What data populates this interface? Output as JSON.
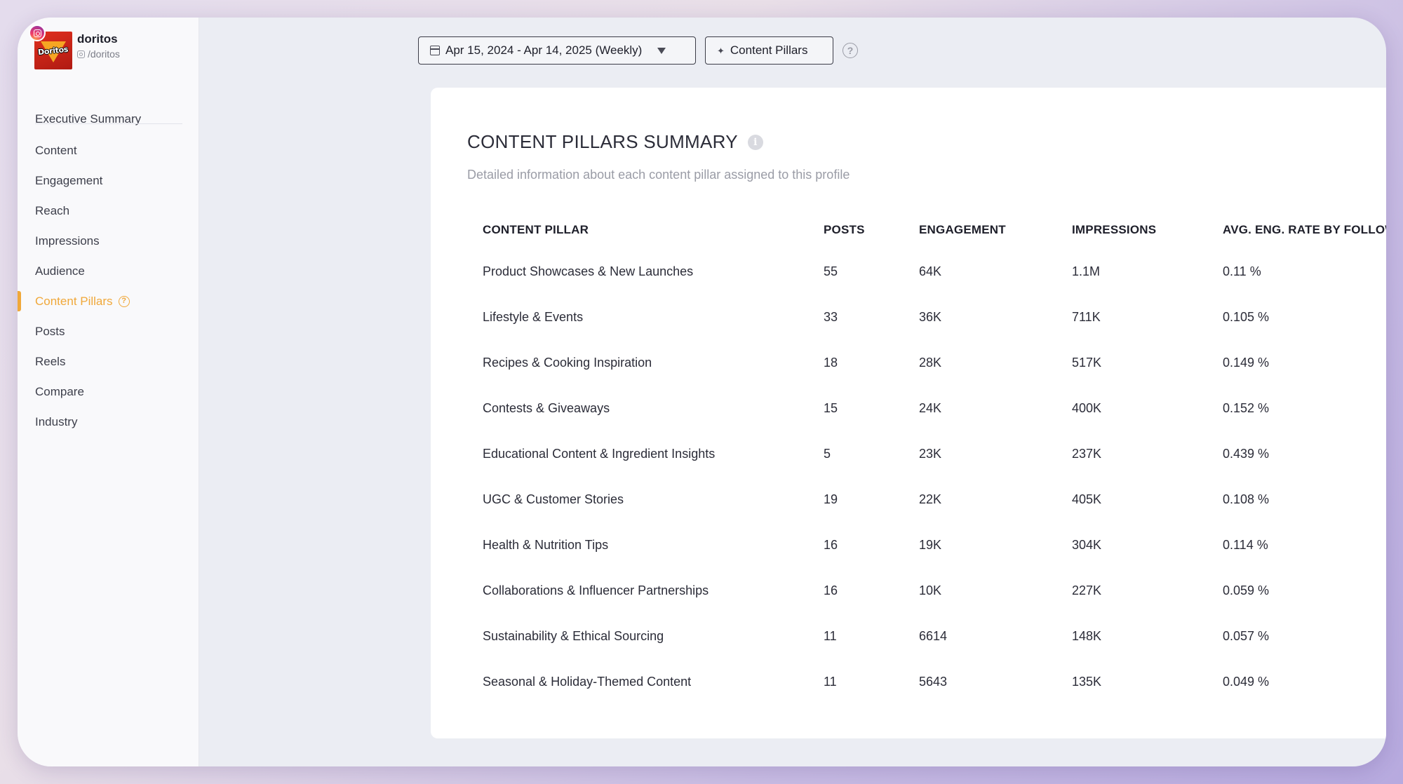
{
  "profile": {
    "name": "doritos",
    "handle": "/doritos",
    "logo_text": "Doritos"
  },
  "sidebar": {
    "executive": "Executive Summary",
    "items": [
      {
        "label": "Content"
      },
      {
        "label": "Engagement"
      },
      {
        "label": "Reach"
      },
      {
        "label": "Impressions"
      },
      {
        "label": "Audience"
      },
      {
        "label": "Content Pillars",
        "active": true
      },
      {
        "label": "Posts"
      },
      {
        "label": "Reels"
      },
      {
        "label": "Compare"
      },
      {
        "label": "Industry"
      }
    ],
    "help_glyph": "?"
  },
  "toolbar": {
    "date_range": "Apr 15, 2024 - Apr 14, 2025 (Weekly)",
    "pillars_label": "Content Pillars",
    "help_glyph": "?"
  },
  "card": {
    "title": "CONTENT PILLARS SUMMARY",
    "info_glyph": "i",
    "subtitle": "Detailed information about each content pillar assigned to this profile"
  },
  "table": {
    "headers": [
      "CONTENT PILLAR",
      "POSTS",
      "ENGAGEMENT",
      "IMPRESSIONS",
      "AVG. ENG. RATE BY FOLLOWERS"
    ],
    "rows": [
      [
        "Product Showcases & New Launches",
        "55",
        "64K",
        "1.1M",
        "0.11 %"
      ],
      [
        "Lifestyle & Events",
        "33",
        "36K",
        "711K",
        "0.105 %"
      ],
      [
        "Recipes & Cooking Inspiration",
        "18",
        "28K",
        "517K",
        "0.149 %"
      ],
      [
        "Contests & Giveaways",
        "15",
        "24K",
        "400K",
        "0.152 %"
      ],
      [
        "Educational Content & Ingredient Insights",
        "5",
        "23K",
        "237K",
        "0.439 %"
      ],
      [
        "UGC & Customer Stories",
        "19",
        "22K",
        "405K",
        "0.108 %"
      ],
      [
        "Health & Nutrition Tips",
        "16",
        "19K",
        "304K",
        "0.114 %"
      ],
      [
        "Collaborations & Influencer Partnerships",
        "16",
        "10K",
        "227K",
        "0.059 %"
      ],
      [
        "Sustainability & Ethical Sourcing",
        "11",
        "6614",
        "148K",
        "0.057 %"
      ],
      [
        "Seasonal & Holiday-Themed Content",
        "11",
        "5643",
        "135K",
        "0.049 %"
      ]
    ]
  },
  "colors": {
    "accent": "#f0a83a",
    "brand_red": "#d42a1c",
    "instagram": "#e1306c"
  },
  "icons": {
    "calendar": "calendar-icon",
    "caret": "chevron-down-icon",
    "sparkle": "sparkle-icon",
    "help": "help-circle-icon",
    "info": "info-icon",
    "instagram": "instagram-icon"
  }
}
